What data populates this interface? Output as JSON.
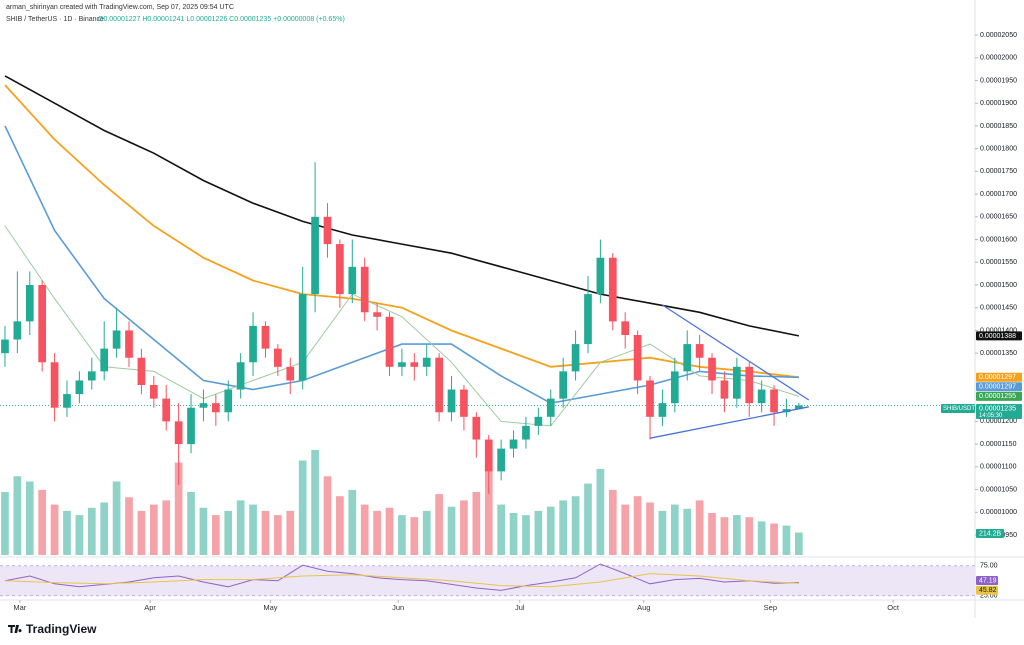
{
  "chart_data": {
    "type": "candlestick",
    "author_line": "arman_shirinyan created with TradingView.com, Sep 07, 2025 09:54 UTC",
    "symbol_line": "SHIB / TetherUS · 1D · Binance",
    "ohlc_line": "O0.00001227 H0.00001241 L0.00001226 C0.00001235 +0.00000008 (+0.65%)",
    "brand": "TradingView",
    "up_color": "#22ab94",
    "down_color": "#f7525f",
    "volume_up_color": "#8fd3c8",
    "volume_down_color": "#f5a3a9",
    "xlim": [
      -0.4,
      78.2
    ],
    "xticks": [
      {
        "value": 1.2,
        "label": "Mar"
      },
      {
        "value": 11.7,
        "label": "Apr"
      },
      {
        "value": 21.4,
        "label": "May"
      },
      {
        "value": 31.7,
        "label": "Jun"
      },
      {
        "value": 41.5,
        "label": "Jul"
      },
      {
        "value": 51.5,
        "label": "Aug"
      },
      {
        "value": 61.7,
        "label": "Sep"
      },
      {
        "value": 71.6,
        "label": "Oct"
      }
    ],
    "ylim": [
      9.06e-06,
      2.127e-05
    ],
    "yticks": [
      {
        "value": 2.05e-05,
        "label": "0.00002050"
      },
      {
        "value": 2e-05,
        "label": "0.00002000"
      },
      {
        "value": 1.95e-05,
        "label": "0.00001950"
      },
      {
        "value": 1.9e-05,
        "label": "0.00001900"
      },
      {
        "value": 1.85e-05,
        "label": "0.00001850"
      },
      {
        "value": 1.8e-05,
        "label": "0.00001800"
      },
      {
        "value": 1.75e-05,
        "label": "0.00001750"
      },
      {
        "value": 1.7e-05,
        "label": "0.00001700"
      },
      {
        "value": 1.65e-05,
        "label": "0.00001650"
      },
      {
        "value": 1.6e-05,
        "label": "0.00001600"
      },
      {
        "value": 1.55e-05,
        "label": "0.00001550"
      },
      {
        "value": 1.5e-05,
        "label": "0.00001500"
      },
      {
        "value": 1.45e-05,
        "label": "0.00001450"
      },
      {
        "value": 1.4e-05,
        "label": "0.00001400"
      },
      {
        "value": 1.35e-05,
        "label": "0.00001350"
      },
      {
        "value": 1.2e-05,
        "label": "0.00001200"
      },
      {
        "value": 1.15e-05,
        "label": "0.00001150"
      },
      {
        "value": 1.1e-05,
        "label": "0.00001100"
      },
      {
        "value": 1.05e-05,
        "label": "0.00001050"
      },
      {
        "value": 1e-05,
        "label": "0.00001000"
      },
      {
        "value": 9.5e-06,
        "label": "0.00000950"
      }
    ],
    "open": [
      1.35e-05,
      1.38e-05,
      1.42e-05,
      1.5e-05,
      1.33e-05,
      1.23e-05,
      1.26e-05,
      1.29e-05,
      1.31e-05,
      1.36e-05,
      1.4e-05,
      1.34e-05,
      1.28e-05,
      1.25e-05,
      1.2e-05,
      1.15e-05,
      1.23e-05,
      1.24e-05,
      1.22e-05,
      1.27e-05,
      1.33e-05,
      1.41e-05,
      1.36e-05,
      1.32e-05,
      1.29e-05,
      1.48e-05,
      1.65e-05,
      1.59e-05,
      1.48e-05,
      1.54e-05,
      1.44e-05,
      1.43e-05,
      1.32e-05,
      1.33e-05,
      1.32e-05,
      1.34e-05,
      1.22e-05,
      1.27e-05,
      1.21e-05,
      1.16e-05,
      1.09e-05,
      1.14e-05,
      1.16e-05,
      1.19e-05,
      1.21e-05,
      1.25e-05,
      1.31e-05,
      1.37e-05,
      1.48e-05,
      1.56e-05,
      1.42e-05,
      1.39e-05,
      1.29e-05,
      1.21e-05,
      1.24e-05,
      1.31e-05,
      1.37e-05,
      1.34e-05,
      1.29e-05,
      1.25e-05,
      1.32e-05,
      1.24e-05,
      1.27e-05,
      1.22e-05,
      1.227e-05
    ],
    "high": [
      1.41e-05,
      1.53e-05,
      1.53e-05,
      1.51e-05,
      1.35e-05,
      1.29e-05,
      1.31e-05,
      1.34e-05,
      1.42e-05,
      1.45e-05,
      1.42e-05,
      1.36e-05,
      1.3e-05,
      1.28e-05,
      1.24e-05,
      1.26e-05,
      1.27e-05,
      1.26e-05,
      1.29e-05,
      1.35e-05,
      1.44e-05,
      1.42e-05,
      1.37e-05,
      1.34e-05,
      1.54e-05,
      1.77e-05,
      1.68e-05,
      1.6e-05,
      1.6e-05,
      1.56e-05,
      1.46e-05,
      1.44e-05,
      1.36e-05,
      1.35e-05,
      1.37e-05,
      1.35e-05,
      1.3e-05,
      1.28e-05,
      1.22e-05,
      1.17e-05,
      1.16e-05,
      1.18e-05,
      1.21e-05,
      1.23e-05,
      1.27e-05,
      1.34e-05,
      1.4e-05,
      1.52e-05,
      1.6e-05,
      1.57e-05,
      1.44e-05,
      1.4e-05,
      1.3e-05,
      1.27e-05,
      1.34e-05,
      1.4e-05,
      1.39e-05,
      1.35e-05,
      1.31e-05,
      1.34e-05,
      1.33e-05,
      1.29e-05,
      1.28e-05,
      1.25e-05,
      1.241e-05
    ],
    "low": [
      1.32e-05,
      1.35e-05,
      1.39e-05,
      1.31e-05,
      1.2e-05,
      1.21e-05,
      1.24e-05,
      1.27e-05,
      1.29e-05,
      1.34e-05,
      1.32e-05,
      1.26e-05,
      1.23e-05,
      1.18e-05,
      1.06e-05,
      1.13e-05,
      1.2e-05,
      1.19e-05,
      1.2e-05,
      1.25e-05,
      1.3e-05,
      1.34e-05,
      1.3e-05,
      1.26e-05,
      1.27e-05,
      1.44e-05,
      1.56e-05,
      1.45e-05,
      1.46e-05,
      1.42e-05,
      1.4e-05,
      1.3e-05,
      1.3e-05,
      1.29e-05,
      1.3e-05,
      1.2e-05,
      1.2e-05,
      1.18e-05,
      1.12e-05,
      1.04e-05,
      1.07e-05,
      1.12e-05,
      1.14e-05,
      1.17e-05,
      1.19e-05,
      1.23e-05,
      1.29e-05,
      1.35e-05,
      1.46e-05,
      1.4e-05,
      1.36e-05,
      1.26e-05,
      1.16e-05,
      1.19e-05,
      1.22e-05,
      1.29e-05,
      1.31e-05,
      1.26e-05,
      1.22e-05,
      1.23e-05,
      1.21e-05,
      1.22e-05,
      1.19e-05,
      1.21e-05,
      1.226e-05
    ],
    "close": [
      1.38e-05,
      1.42e-05,
      1.5e-05,
      1.33e-05,
      1.23e-05,
      1.26e-05,
      1.29e-05,
      1.31e-05,
      1.36e-05,
      1.4e-05,
      1.34e-05,
      1.28e-05,
      1.25e-05,
      1.2e-05,
      1.15e-05,
      1.23e-05,
      1.24e-05,
      1.22e-05,
      1.27e-05,
      1.33e-05,
      1.41e-05,
      1.36e-05,
      1.32e-05,
      1.29e-05,
      1.48e-05,
      1.65e-05,
      1.59e-05,
      1.48e-05,
      1.54e-05,
      1.44e-05,
      1.43e-05,
      1.32e-05,
      1.33e-05,
      1.32e-05,
      1.34e-05,
      1.22e-05,
      1.27e-05,
      1.21e-05,
      1.16e-05,
      1.09e-05,
      1.14e-05,
      1.16e-05,
      1.19e-05,
      1.21e-05,
      1.25e-05,
      1.31e-05,
      1.37e-05,
      1.48e-05,
      1.56e-05,
      1.42e-05,
      1.39e-05,
      1.29e-05,
      1.21e-05,
      1.24e-05,
      1.31e-05,
      1.37e-05,
      1.34e-05,
      1.29e-05,
      1.25e-05,
      1.32e-05,
      1.24e-05,
      1.27e-05,
      1.22e-05,
      1.227e-05,
      1.235e-05
    ],
    "volumes": [
      600,
      750,
      700,
      620,
      480,
      420,
      380,
      450,
      500,
      700,
      550,
      420,
      480,
      520,
      880,
      600,
      450,
      380,
      420,
      520,
      480,
      420,
      380,
      420,
      900,
      1000,
      750,
      560,
      620,
      480,
      420,
      450,
      380,
      360,
      420,
      580,
      460,
      520,
      600,
      850,
      480,
      400,
      380,
      420,
      460,
      520,
      560,
      680,
      820,
      620,
      480,
      560,
      500,
      420,
      480,
      440,
      520,
      400,
      360,
      380,
      360,
      320,
      300,
      280,
      214.2
    ],
    "volume_labels": [
      null,
      null,
      null,
      null,
      null,
      null,
      null,
      null,
      null,
      null,
      null,
      null,
      null,
      null,
      null,
      null,
      null,
      null,
      null,
      null,
      null,
      null,
      null,
      null,
      null,
      null,
      null,
      null,
      null,
      null,
      null,
      null,
      null,
      null,
      null,
      null,
      null,
      null,
      null,
      null,
      null,
      null,
      null,
      null,
      null,
      null,
      null,
      null,
      null,
      null,
      null,
      null,
      null,
      null,
      null,
      null,
      null,
      null,
      null,
      null,
      null,
      null,
      null,
      null,
      "214.2B"
    ],
    "vlim": [
      0,
      1000
    ],
    "moving_averages": [
      {
        "color": "#111111",
        "width": 1.6,
        "x": [
          0,
          4,
          8,
          12,
          16,
          20,
          24,
          28,
          32,
          36,
          40,
          44,
          48,
          52,
          56,
          60,
          64
        ],
        "values": [
          1.96e-05,
          1.9e-05,
          1.84e-05,
          1.79e-05,
          1.73e-05,
          1.68e-05,
          1.64e-05,
          1.61e-05,
          1.59e-05,
          1.57e-05,
          1.54e-05,
          1.51e-05,
          1.48e-05,
          1.46e-05,
          1.44e-05,
          1.41e-05,
          1.388e-05
        ]
      },
      {
        "color": "#f4a21d",
        "width": 1.8,
        "x": [
          0,
          4,
          8,
          12,
          16,
          20,
          24,
          28,
          32,
          36,
          40,
          44,
          48,
          52,
          56,
          60,
          64
        ],
        "values": [
          1.94e-05,
          1.82e-05,
          1.72e-05,
          1.63e-05,
          1.56e-05,
          1.51e-05,
          1.48e-05,
          1.47e-05,
          1.45e-05,
          1.4e-05,
          1.36e-05,
          1.32e-05,
          1.33e-05,
          1.34e-05,
          1.32e-05,
          1.31e-05,
          1.297e-05
        ]
      },
      {
        "color": "#5b9bd5",
        "width": 1.6,
        "x": [
          0,
          4,
          8,
          12,
          16,
          20,
          24,
          28,
          32,
          36,
          40,
          44,
          48,
          52,
          56,
          60,
          64
        ],
        "values": [
          1.85e-05,
          1.62e-05,
          1.47e-05,
          1.38e-05,
          1.29e-05,
          1.27e-05,
          1.29e-05,
          1.33e-05,
          1.37e-05,
          1.37e-05,
          1.3e-05,
          1.24e-05,
          1.26e-05,
          1.28e-05,
          1.31e-05,
          1.3e-05,
          1.297e-05
        ]
      },
      {
        "color": "#9ccc9c",
        "width": 1,
        "x": [
          0,
          4,
          8,
          12,
          16,
          20,
          24,
          28,
          32,
          36,
          40,
          44,
          48,
          52,
          56,
          60,
          64
        ],
        "values": [
          1.63e-05,
          1.47e-05,
          1.32e-05,
          1.31e-05,
          1.25e-05,
          1.29e-05,
          1.33e-05,
          1.48e-05,
          1.43e-05,
          1.33e-05,
          1.2e-05,
          1.19e-05,
          1.33e-05,
          1.37e-05,
          1.3e-05,
          1.29e-05,
          1.255e-05
        ]
      }
    ],
    "trendlines": [
      {
        "color": "#4a72d9",
        "x": [
          52,
          64.8
        ],
        "values": [
          1.163e-05,
          1.232e-05
        ]
      },
      {
        "color": "#4a72d9",
        "x": [
          53,
          64.8
        ],
        "values": [
          1.456e-05,
          1.247e-05
        ]
      }
    ],
    "price_tags": [
      {
        "value": 1.388e-05,
        "label": "0.00001388",
        "color": "#111111"
      },
      {
        "value": 1.297e-05,
        "label": "0.00001297",
        "color": "#f4a21d"
      },
      {
        "value": 1.297e-05,
        "label": "0.00001297",
        "color": "#5b9bd5"
      },
      {
        "value": 1.255e-05,
        "label": "0.00001255",
        "color": "#3aa655"
      }
    ],
    "current": {
      "value": 1.235e-05,
      "label": "0.00001235",
      "name": "SHIB/USDT",
      "countdown": "14:05:30",
      "color": "#22ab94"
    },
    "rsi": {
      "color": "#8e63c9",
      "ma_color": "#e8c547",
      "band_color": "#ede6f7",
      "ylim": [
        18,
        88
      ],
      "yticks": [
        {
          "value": 75,
          "label": "75.00"
        },
        {
          "value": 25,
          "label": "25.00"
        }
      ],
      "x": [
        0,
        2,
        4,
        6,
        8,
        10,
        12,
        14,
        16,
        18,
        20,
        22,
        24,
        26,
        28,
        30,
        32,
        34,
        36,
        38,
        40,
        42,
        44,
        46,
        48,
        50,
        52,
        54,
        56,
        58,
        60,
        62,
        64
      ],
      "values": [
        50,
        58,
        45,
        40,
        44,
        48,
        55,
        58,
        48,
        40,
        52,
        50,
        76,
        66,
        62,
        55,
        52,
        50,
        44,
        38,
        34,
        42,
        48,
        55,
        78,
        62,
        45,
        52,
        54,
        48,
        50,
        46,
        47.19
      ],
      "value_labels": [
        null,
        null,
        null,
        null,
        null,
        null,
        null,
        null,
        null,
        null,
        null,
        null,
        null,
        null,
        null,
        null,
        null,
        null,
        null,
        null,
        null,
        null,
        null,
        null,
        null,
        null,
        null,
        null,
        null,
        null,
        null,
        null,
        "47.19"
      ],
      "ma_x": [
        0,
        4,
        8,
        12,
        16,
        20,
        24,
        28,
        32,
        36,
        40,
        44,
        48,
        52,
        56,
        60,
        64
      ],
      "ma_values": [
        50,
        47,
        45,
        48,
        52,
        52,
        58,
        60,
        55,
        50,
        42,
        40,
        48,
        62,
        58,
        50,
        45.82
      ],
      "ma_value_labels": [
        null,
        null,
        null,
        null,
        null,
        null,
        null,
        null,
        null,
        null,
        null,
        null,
        null,
        null,
        null,
        null,
        "45.82"
      ]
    }
  }
}
